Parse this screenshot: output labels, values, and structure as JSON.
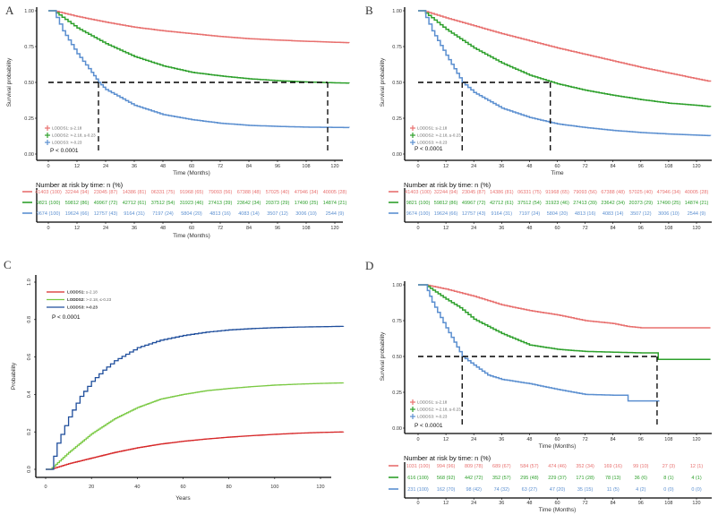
{
  "figure": {
    "panels": [
      "A",
      "B",
      "C",
      "D"
    ]
  },
  "colors": {
    "lodds1": "#e8706f",
    "lodds2": "#2ea02c",
    "lodds3": "#5b8fd0",
    "c_lodds1": "#d62728",
    "c_lodds2": "#7ac943",
    "c_lodds3": "#1f4e9c",
    "median_line": "#000000"
  },
  "chart_data": [
    {
      "panel": "A",
      "type": "line",
      "subtype": "kaplan-meier",
      "xlabel": "Time (Months)",
      "ylabel": "Survival probability",
      "xlim": [
        0,
        126
      ],
      "ylim": [
        0,
        1
      ],
      "xticks": [
        0,
        12,
        24,
        36,
        48,
        60,
        72,
        84,
        96,
        108,
        120
      ],
      "yticks": [
        "0.00",
        "0.25",
        "0.50",
        "0.75",
        "1.00"
      ],
      "pvalue": "P < 0.0001",
      "legend": [
        "LODDS1: ≤-2.18",
        "LODDS2: >-2.18, ≤-0.23",
        "LODDS3: >-0.23"
      ],
      "legend_position": "bottom-left",
      "median_lines": [
        {
          "x": 21,
          "y": 0.5
        },
        {
          "x": 117,
          "y": 0.5
        }
      ],
      "series": [
        {
          "name": "LODDS1",
          "x": [
            0,
            2,
            12,
            24,
            36,
            48,
            60,
            72,
            84,
            96,
            108,
            120,
            126
          ],
          "y": [
            1.0,
            1.0,
            0.96,
            0.92,
            0.885,
            0.86,
            0.84,
            0.82,
            0.805,
            0.795,
            0.787,
            0.78,
            0.777
          ]
        },
        {
          "name": "LODDS2",
          "x": [
            0,
            2,
            12,
            24,
            36,
            48,
            60,
            72,
            84,
            96,
            108,
            120,
            126
          ],
          "y": [
            1.0,
            1.0,
            0.88,
            0.77,
            0.68,
            0.615,
            0.57,
            0.545,
            0.525,
            0.512,
            0.503,
            0.497,
            0.495
          ]
        },
        {
          "name": "LODDS3",
          "x": [
            0,
            2,
            6,
            12,
            18,
            21,
            24,
            36,
            48,
            60,
            72,
            84,
            96,
            108,
            120,
            126
          ],
          "y": [
            1.0,
            1.0,
            0.86,
            0.7,
            0.57,
            0.5,
            0.45,
            0.34,
            0.275,
            0.24,
            0.215,
            0.2,
            0.193,
            0.188,
            0.186,
            0.185
          ]
        }
      ],
      "risk_table": {
        "title": "Number at risk by time: n (%)",
        "xlabel": "Time (Months)",
        "rows": [
          [
            "41403 (100)",
            "32244 (94)",
            "23045 (87)",
            "14386 (81)",
            "06331 (75)",
            "91968 (65)",
            "79093 (56)",
            "67388 (48)",
            "57025 (40)",
            "47946 (34)",
            "40005 (28)"
          ],
          [
            "9821 (100)",
            "59812 (86)",
            "49967 (72)",
            "42712 (61)",
            "37512 (54)",
            "31923 (46)",
            "27413 (39)",
            "23642 (34)",
            "20373 (29)",
            "17490 (25)",
            "14874 (21)"
          ],
          [
            "9674 (100)",
            "19624 (66)",
            "12757 (43)",
            "9164 (31)",
            "7197 (24)",
            "5804 (20)",
            "4813 (16)",
            "4083 (14)",
            "3507 (12)",
            "3006 (10)",
            "2544 (9)"
          ]
        ]
      }
    },
    {
      "panel": "B",
      "type": "line",
      "subtype": "kaplan-meier",
      "xlabel": "Time",
      "ylabel": "Survival probability",
      "xlim": [
        0,
        126
      ],
      "ylim": [
        0,
        1
      ],
      "xticks": [
        0,
        12,
        24,
        36,
        48,
        60,
        72,
        84,
        96,
        108,
        120
      ],
      "yticks": [
        "0.00",
        "0.25",
        "0.50",
        "0.75",
        "1.00"
      ],
      "pvalue": "P < 0.0001",
      "legend": [
        "LODDS1: ≤-2.18",
        "LODDS2: >-2.18, ≤-0.23",
        "LODDS3: >-0.23"
      ],
      "legend_position": "bottom-left",
      "median_lines": [
        {
          "x": 19,
          "y": 0.5
        },
        {
          "x": 57,
          "y": 0.5
        }
      ],
      "series": [
        {
          "name": "LODDS1",
          "x": [
            0,
            2,
            12,
            24,
            36,
            48,
            60,
            72,
            84,
            96,
            108,
            120,
            126
          ],
          "y": [
            1.0,
            1.0,
            0.95,
            0.895,
            0.84,
            0.79,
            0.74,
            0.695,
            0.65,
            0.605,
            0.565,
            0.525,
            0.505
          ]
        },
        {
          "name": "LODDS2",
          "x": [
            0,
            2,
            12,
            24,
            36,
            48,
            60,
            72,
            84,
            96,
            108,
            120,
            126
          ],
          "y": [
            1.0,
            1.0,
            0.87,
            0.74,
            0.635,
            0.55,
            0.49,
            0.445,
            0.41,
            0.38,
            0.355,
            0.34,
            0.33
          ]
        },
        {
          "name": "LODDS3",
          "x": [
            0,
            2,
            6,
            12,
            19,
            24,
            36,
            48,
            60,
            72,
            84,
            96,
            108,
            120,
            126
          ],
          "y": [
            1.0,
            1.0,
            0.86,
            0.69,
            0.5,
            0.43,
            0.32,
            0.255,
            0.21,
            0.185,
            0.165,
            0.15,
            0.14,
            0.132,
            0.128
          ]
        }
      ],
      "risk_table": {
        "title": "Number at risk by time: n (%)",
        "xlabel": "",
        "rows": [
          [
            "41403 (100)",
            "32244 (94)",
            "23045 (87)",
            "14386 (81)",
            "06331 (75)",
            "91968 (65)",
            "79093 (56)",
            "67388 (48)",
            "57025 (40)",
            "47946 (34)",
            "40005 (28)"
          ],
          [
            "9821 (100)",
            "59812 (86)",
            "49967 (72)",
            "42712 (61)",
            "37512 (54)",
            "31923 (46)",
            "27413 (39)",
            "23642 (34)",
            "20373 (29)",
            "17490 (25)",
            "14874 (21)"
          ],
          [
            "9674 (100)",
            "19624 (66)",
            "12757 (43)",
            "9164 (31)",
            "7197 (24)",
            "5804 (20)",
            "4813 (16)",
            "4083 (14)",
            "3507 (12)",
            "3006 (10)",
            "2544 (9)"
          ]
        ]
      }
    },
    {
      "panel": "C",
      "type": "line",
      "subtype": "cumulative-incidence",
      "xlabel": "Years",
      "ylabel": "Probability",
      "xlim": [
        -5,
        125
      ],
      "ylim": [
        0,
        1
      ],
      "xticks": [
        0,
        20,
        40,
        60,
        80,
        100,
        120
      ],
      "yticks": [
        "0.0",
        "0.2",
        "0.4",
        "0.6",
        "0.8",
        "1.0"
      ],
      "pvalue": "P < 0.0001",
      "legend": [
        "LODDS1: ≤-2.18",
        "LODDS2: >-2.18, ≤-0.23",
        "LODDS3: >-0.23"
      ],
      "legend_position": "top-left",
      "series": [
        {
          "name": "LODDS1",
          "x": [
            0,
            2,
            10,
            20,
            30,
            40,
            50,
            60,
            70,
            80,
            90,
            100,
            110,
            120,
            130
          ],
          "y": [
            0,
            0,
            0.03,
            0.06,
            0.09,
            0.115,
            0.135,
            0.15,
            0.162,
            0.172,
            0.18,
            0.187,
            0.193,
            0.197,
            0.2
          ]
        },
        {
          "name": "LODDS2",
          "x": [
            0,
            2,
            10,
            20,
            30,
            40,
            50,
            60,
            70,
            80,
            90,
            100,
            110,
            120,
            130
          ],
          "y": [
            0,
            0,
            0.09,
            0.19,
            0.27,
            0.33,
            0.375,
            0.4,
            0.42,
            0.432,
            0.442,
            0.45,
            0.455,
            0.459,
            0.462
          ]
        },
        {
          "name": "LODDS3",
          "x": [
            0,
            2,
            5,
            10,
            15,
            20,
            25,
            30,
            40,
            50,
            60,
            70,
            80,
            90,
            100,
            110,
            120,
            130
          ],
          "y": [
            0,
            0,
            0.14,
            0.28,
            0.39,
            0.47,
            0.53,
            0.58,
            0.65,
            0.69,
            0.715,
            0.733,
            0.745,
            0.752,
            0.757,
            0.76,
            0.762,
            0.764
          ]
        }
      ]
    },
    {
      "panel": "D",
      "type": "line",
      "subtype": "kaplan-meier",
      "xlabel": "Time (Months)",
      "ylabel": "Survival probability",
      "xlim": [
        0,
        126
      ],
      "ylim": [
        0,
        1
      ],
      "xticks": [
        0,
        12,
        24,
        36,
        48,
        60,
        72,
        84,
        96,
        108,
        120
      ],
      "yticks": [
        "0.00",
        "0.25",
        "0.50",
        "0.75",
        "1.00"
      ],
      "pvalue": "P < 0.0001",
      "legend": [
        "LODDS1: ≤-2.18",
        "LODDS2: >-2.18, ≤-0.23",
        "LODDS3: >-0.23"
      ],
      "legend_position": "bottom-left",
      "median_lines": [
        {
          "x": 19,
          "y": 0.5
        },
        {
          "x": 103,
          "y": 0.5
        }
      ],
      "series": [
        {
          "name": "LODDS1",
          "x": [
            0,
            3,
            12,
            24,
            36,
            48,
            60,
            72,
            84,
            90,
            96,
            108,
            120,
            126
          ],
          "y": [
            1.0,
            1.0,
            0.97,
            0.92,
            0.86,
            0.82,
            0.79,
            0.75,
            0.73,
            0.71,
            0.7,
            0.7,
            0.7,
            0.7
          ]
        },
        {
          "name": "LODDS2",
          "x": [
            0,
            3,
            12,
            18,
            24,
            36,
            48,
            60,
            72,
            84,
            96,
            103,
            103.5,
            126
          ],
          "y": [
            1.0,
            1.0,
            0.9,
            0.84,
            0.76,
            0.66,
            0.58,
            0.55,
            0.535,
            0.53,
            0.525,
            0.525,
            0.48,
            0.48
          ]
        },
        {
          "name": "LODDS3",
          "x": [
            0,
            3,
            6,
            12,
            19,
            24,
            30,
            36,
            48,
            60,
            72,
            84,
            90,
            90.5,
            104
          ],
          "y": [
            1.0,
            1.0,
            0.88,
            0.7,
            0.5,
            0.44,
            0.37,
            0.34,
            0.31,
            0.27,
            0.235,
            0.23,
            0.23,
            0.19,
            0.19
          ]
        }
      ],
      "risk_table": {
        "title": "Number at risk by time: n (%)",
        "xlabel": "Time (Months)",
        "rows": [
          [
            "1031 (100)",
            "994 (96)",
            "809 (78)",
            "689 (67)",
            "584 (57)",
            "474 (46)",
            "352 (34)",
            "169 (16)",
            "99 (10)",
            "27 (3)",
            "12 (1)"
          ],
          [
            "616 (100)",
            "568 (92)",
            "442 (72)",
            "352 (57)",
            "295 (48)",
            "229 (37)",
            "171 (28)",
            "78 (13)",
            "36 (6)",
            "8 (1)",
            "4 (1)"
          ],
          [
            "231 (100)",
            "162 (70)",
            "98 (42)",
            "74 (32)",
            "63 (27)",
            "47 (20)",
            "35 (15)",
            "11 (5)",
            "4 (2)",
            "0 (0)",
            "0 (0)"
          ]
        ]
      }
    }
  ]
}
